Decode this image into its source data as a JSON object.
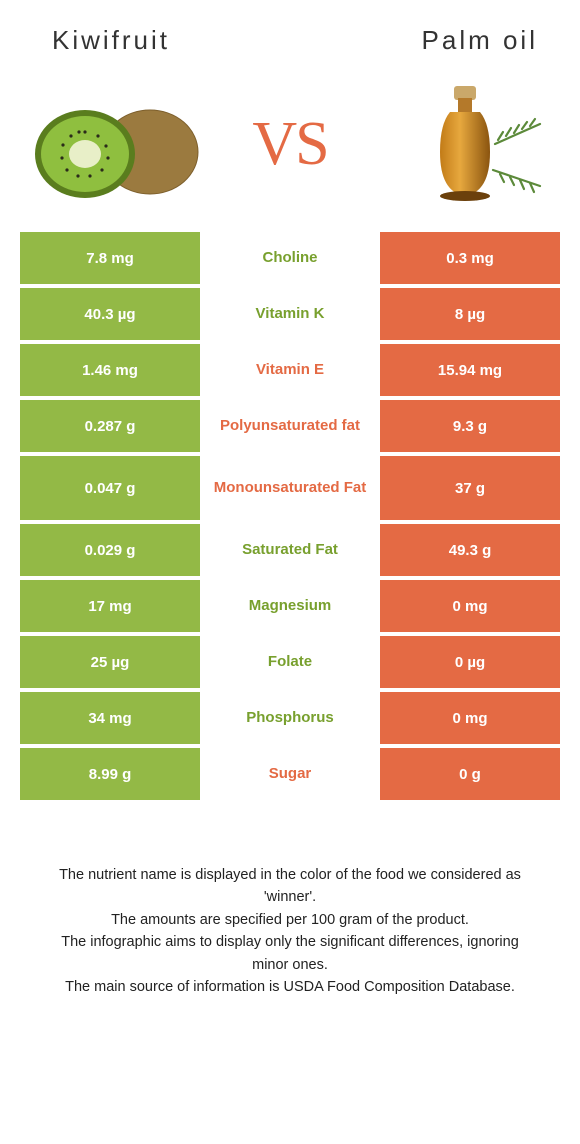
{
  "left_title": "Kiwifruit",
  "right_title": "Palm oil",
  "vs_text": "VS",
  "colors": {
    "left": "#93b946",
    "right": "#e46a44",
    "left_text": "#78a02e",
    "right_text": "#e46a44",
    "white": "#ffffff"
  },
  "rows": [
    {
      "nutrient": "Choline",
      "left": "7.8 mg",
      "right": "0.3 mg",
      "winner": "left",
      "tall": false
    },
    {
      "nutrient": "Vitamin K",
      "left": "40.3 µg",
      "right": "8 µg",
      "winner": "left",
      "tall": false
    },
    {
      "nutrient": "Vitamin E",
      "left": "1.46 mg",
      "right": "15.94 mg",
      "winner": "right",
      "tall": false
    },
    {
      "nutrient": "Polyunsaturated fat",
      "left": "0.287 g",
      "right": "9.3 g",
      "winner": "right",
      "tall": false
    },
    {
      "nutrient": "Monounsaturated Fat",
      "left": "0.047 g",
      "right": "37 g",
      "winner": "right",
      "tall": true
    },
    {
      "nutrient": "Saturated Fat",
      "left": "0.029 g",
      "right": "49.3 g",
      "winner": "left",
      "tall": false
    },
    {
      "nutrient": "Magnesium",
      "left": "17 mg",
      "right": "0 mg",
      "winner": "left",
      "tall": false
    },
    {
      "nutrient": "Folate",
      "left": "25 µg",
      "right": "0 µg",
      "winner": "left",
      "tall": false
    },
    {
      "nutrient": "Phosphorus",
      "left": "34 mg",
      "right": "0 mg",
      "winner": "left",
      "tall": false
    },
    {
      "nutrient": "Sugar",
      "left": "8.99 g",
      "right": "0 g",
      "winner": "right",
      "tall": false
    }
  ],
  "footer_lines": [
    "The nutrient name is displayed in the color of the food we considered as 'winner'.",
    "The amounts are specified per 100 gram of the product.",
    "The infographic aims to display only the significant differences, ignoring minor ones.",
    "The main source of information is USDA Food Composition Database."
  ]
}
